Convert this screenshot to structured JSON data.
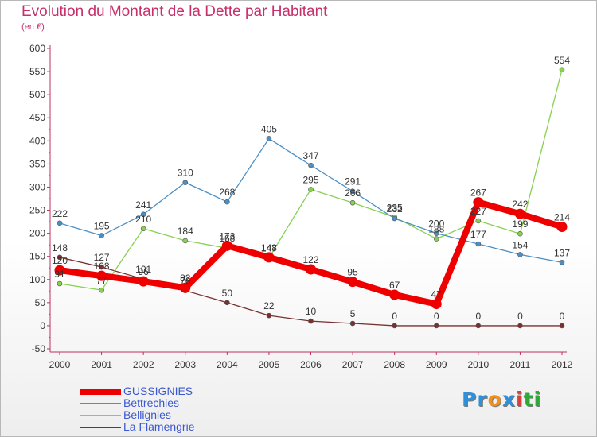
{
  "title": "Evolution du Montant de la Dette par Habitant",
  "subtitle": "(en €)",
  "logo": {
    "letters": [
      "P",
      "r",
      "o",
      "x",
      "i",
      "t",
      "i"
    ],
    "colors": [
      "#2f8fd8",
      "#2f8fd8",
      "#f09020",
      "#2f8fd8",
      "#d84040",
      "#30a838",
      "#30a838"
    ]
  },
  "chart_data": {
    "type": "line",
    "x": [
      "2000",
      "2001",
      "2002",
      "2003",
      "2004",
      "2005",
      "2006",
      "2007",
      "2008",
      "2009",
      "2010",
      "2011",
      "2012"
    ],
    "ylim": [
      -50,
      600
    ],
    "yticks": [
      "-50",
      "0",
      "50",
      "100",
      "150",
      "200",
      "250",
      "300",
      "350",
      "400",
      "450",
      "500",
      "550",
      "600"
    ],
    "grid": false,
    "legend_position": "bottom-left",
    "series": [
      {
        "name": "GUSSIGNIES",
        "color": "#ee0000",
        "values": [
          120,
          108,
          96,
          82,
          173,
          148,
          122,
          95,
          67,
          47,
          267,
          242,
          214
        ]
      },
      {
        "name": "Bettrechies",
        "color": "#4a90c8",
        "values": [
          222,
          195,
          241,
          310,
          268,
          405,
          347,
          291,
          232,
          200,
          177,
          154,
          137
        ]
      },
      {
        "name": "Bellignies",
        "color": "#88d050",
        "values": [
          91,
          77,
          210,
          184,
          168,
          147,
          295,
          266,
          235,
          188,
          227,
          199,
          554
        ]
      },
      {
        "name": "La Flamengrie",
        "color": "#7a3030",
        "values": [
          148,
          127,
          101,
          76,
          50,
          22,
          10,
          5,
          0,
          0,
          0,
          0,
          0
        ]
      }
    ]
  }
}
